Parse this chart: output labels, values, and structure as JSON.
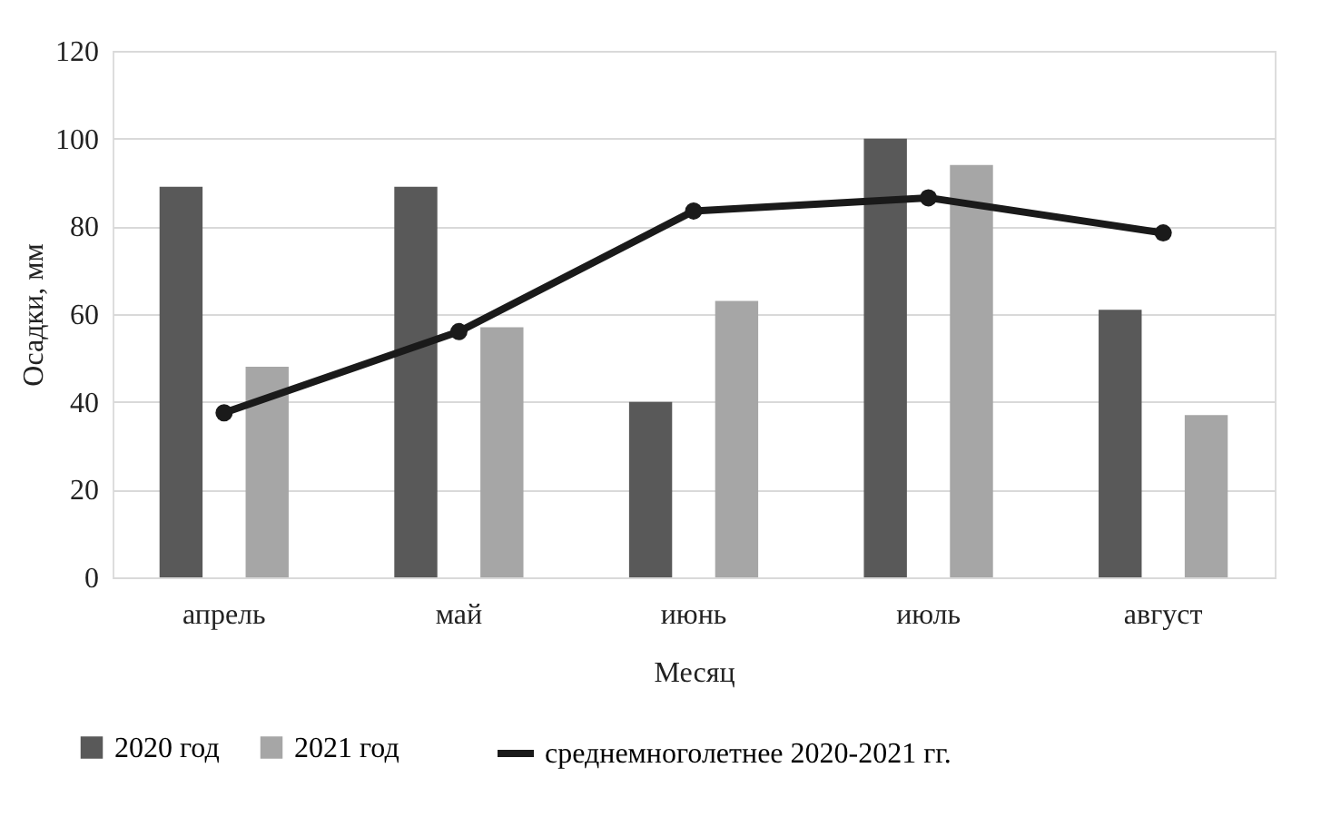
{
  "chart_data": {
    "type": "bar",
    "xlabel": "Месяц",
    "ylabel": "Осадки, мм",
    "categories": [
      "апрель",
      "май",
      "июнь",
      "июль",
      "август"
    ],
    "series": [
      {
        "name": "2020 год",
        "color": "#595959",
        "values": [
          89,
          89,
          40,
          100,
          61
        ]
      },
      {
        "name": "2021 год",
        "color": "#a6a6a6",
        "values": [
          48,
          57,
          63,
          94,
          37
        ]
      },
      {
        "name": "среднемноголетнее 2020-2021 гг.",
        "type": "line",
        "color": "#1a1a1a",
        "values": [
          37.5,
          56,
          83.5,
          86.5,
          78.5
        ]
      }
    ],
    "ylim": [
      0,
      120
    ],
    "yticks": [
      0,
      20,
      40,
      60,
      80,
      100,
      120
    ],
    "grid": "y",
    "legend": "bottom",
    "marker": "circle"
  }
}
